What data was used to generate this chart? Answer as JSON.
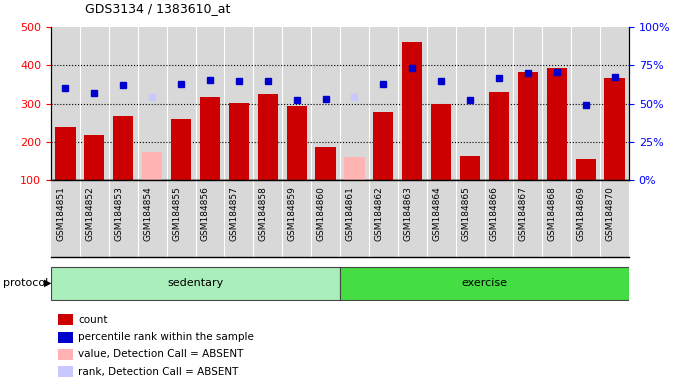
{
  "title": "GDS3134 / 1383610_at",
  "samples": [
    "GSM184851",
    "GSM184852",
    "GSM184853",
    "GSM184854",
    "GSM184855",
    "GSM184856",
    "GSM184857",
    "GSM184858",
    "GSM184859",
    "GSM184860",
    "GSM184861",
    "GSM184862",
    "GSM184863",
    "GSM184864",
    "GSM184865",
    "GSM184866",
    "GSM184867",
    "GSM184868",
    "GSM184869",
    "GSM184870"
  ],
  "count_values": [
    240,
    218,
    268,
    null,
    260,
    318,
    302,
    326,
    293,
    186,
    null,
    278,
    460,
    300,
    165,
    330,
    382,
    393,
    156,
    368
  ],
  "absent_value_values": [
    null,
    null,
    null,
    175,
    null,
    null,
    null,
    null,
    null,
    null,
    162,
    null,
    null,
    null,
    null,
    null,
    null,
    null,
    null,
    null
  ],
  "percentile_values": [
    340,
    328,
    348,
    null,
    350,
    362,
    358,
    358,
    310,
    312,
    null,
    350,
    394,
    360,
    310,
    368,
    380,
    382,
    296,
    370
  ],
  "absent_rank_values": [
    null,
    null,
    null,
    318,
    null,
    null,
    null,
    null,
    null,
    null,
    318,
    null,
    null,
    null,
    null,
    null,
    null,
    null,
    null,
    null
  ],
  "sedentary_count": 10,
  "exercise_count": 10,
  "bar_color_present": "#cc0000",
  "bar_color_absent": "#ffb3b3",
  "dot_color_present": "#0000cc",
  "dot_color_absent": "#c8c8ff",
  "ylim_left": [
    100,
    500
  ],
  "ylim_right": [
    0,
    100
  ],
  "yticks_left": [
    100,
    200,
    300,
    400,
    500
  ],
  "yticks_right": [
    0,
    25,
    50,
    75,
    100
  ],
  "ytick_labels_right": [
    "0%",
    "25%",
    "50%",
    "75%",
    "100%"
  ],
  "grid_values": [
    200,
    300,
    400
  ],
  "col_bg_color": "#d8d8d8",
  "sedentary_color": "#aaeebb",
  "exercise_color": "#44dd44",
  "legend_items": [
    {
      "color": "#cc0000",
      "label": "count"
    },
    {
      "color": "#0000cc",
      "label": "percentile rank within the sample"
    },
    {
      "color": "#ffb3b3",
      "label": "value, Detection Call = ABSENT"
    },
    {
      "color": "#c8c8ff",
      "label": "rank, Detection Call = ABSENT"
    }
  ]
}
